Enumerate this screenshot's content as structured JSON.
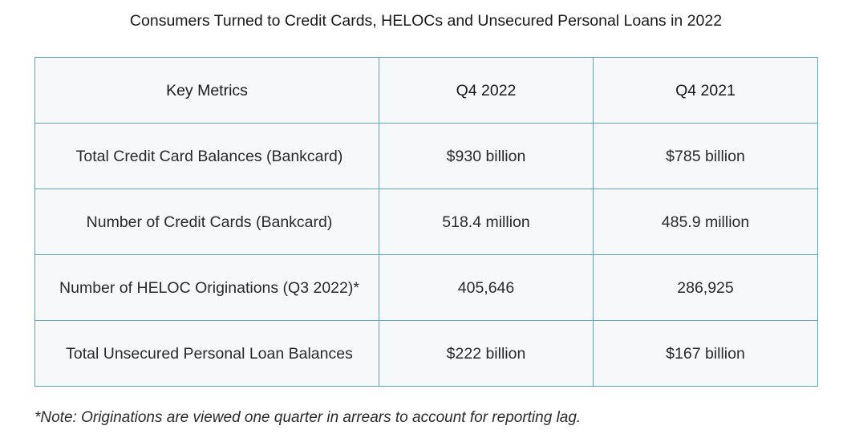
{
  "title": "Consumers Turned to Credit Cards, HELOCs and Unsecured Personal Loans in 2022",
  "table": {
    "headers": [
      "Key Metrics",
      "Q4 2022",
      "Q4 2021"
    ],
    "rows": [
      [
        "Total Credit Card Balances (Bankcard)",
        "$930 billion",
        "$785 billion"
      ],
      [
        "Number of Credit Cards (Bankcard)",
        "518.4 million",
        "485.9 million"
      ],
      [
        "Number of HELOC Originations (Q3 2022)*",
        "405,646",
        "286,925"
      ],
      [
        "Total Unsecured Personal Loan Balances",
        "$222 billion",
        "$167 billion"
      ]
    ]
  },
  "note": "*Note: Originations are viewed one quarter in arrears to account for reporting lag.",
  "colors": {
    "border": "#5fa3c2",
    "cell_background": "#f7f8fa",
    "text": "#2a2a2a"
  }
}
